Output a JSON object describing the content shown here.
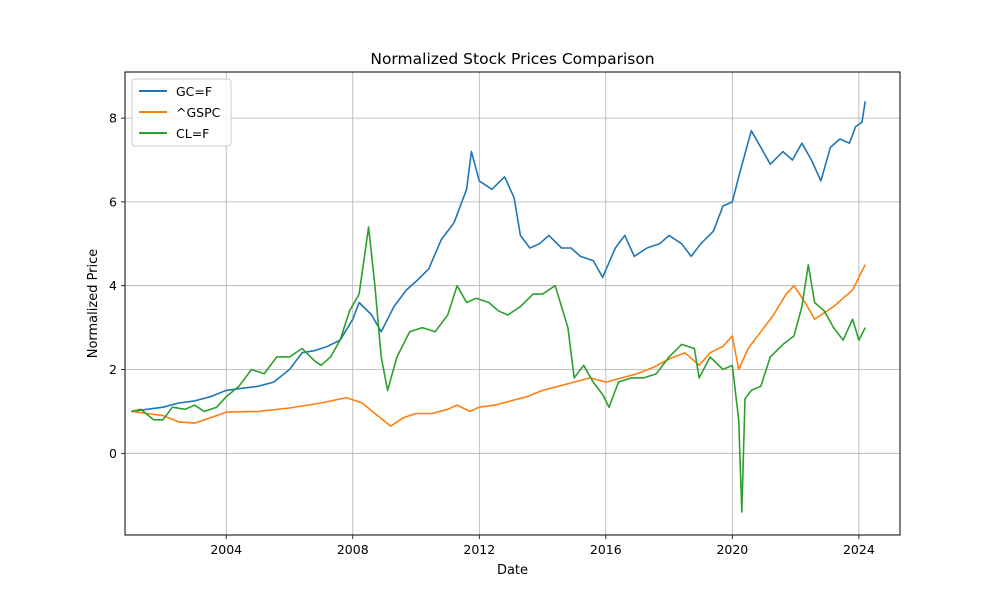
{
  "chart_data": {
    "type": "line",
    "title": "Normalized Stock Prices Comparison",
    "xlabel": "Date",
    "ylabel": "Normalized Price",
    "xlim": [
      2000.8,
      2025.3
    ],
    "ylim": [
      -1.95,
      9.1
    ],
    "x_ticks": [
      2004,
      2008,
      2012,
      2016,
      2020,
      2024
    ],
    "y_ticks": [
      0,
      2,
      4,
      6,
      8
    ],
    "grid": true,
    "legend_position": "top-left",
    "series": [
      {
        "name": "GC=F",
        "color": "#1f77b4",
        "x": [
          2001.0,
          2001.5,
          2002.0,
          2002.5,
          2003.0,
          2003.5,
          2004.0,
          2004.5,
          2005.0,
          2005.5,
          2006.0,
          2006.4,
          2006.8,
          2007.2,
          2007.6,
          2008.0,
          2008.2,
          2008.6,
          2008.9,
          2009.3,
          2009.7,
          2010.0,
          2010.4,
          2010.8,
          2011.2,
          2011.6,
          2011.75,
          2012.0,
          2012.4,
          2012.8,
          2013.1,
          2013.3,
          2013.6,
          2013.9,
          2014.2,
          2014.6,
          2014.9,
          2015.2,
          2015.6,
          2015.9,
          2016.3,
          2016.6,
          2016.9,
          2017.3,
          2017.7,
          2018.0,
          2018.4,
          2018.7,
          2019.0,
          2019.4,
          2019.7,
          2020.0,
          2020.2,
          2020.6,
          2020.9,
          2021.2,
          2021.6,
          2021.9,
          2022.2,
          2022.5,
          2022.8,
          2023.1,
          2023.4,
          2023.7,
          2023.9,
          2024.1,
          2024.2
        ],
        "y": [
          1.0,
          1.05,
          1.1,
          1.2,
          1.25,
          1.35,
          1.5,
          1.55,
          1.6,
          1.7,
          2.0,
          2.4,
          2.45,
          2.55,
          2.7,
          3.2,
          3.6,
          3.3,
          2.9,
          3.5,
          3.9,
          4.1,
          4.4,
          5.1,
          5.5,
          6.3,
          7.2,
          6.5,
          6.3,
          6.6,
          6.1,
          5.2,
          4.9,
          5.0,
          5.2,
          4.9,
          4.9,
          4.7,
          4.6,
          4.2,
          4.9,
          5.2,
          4.7,
          4.9,
          5.0,
          5.2,
          5.0,
          4.7,
          5.0,
          5.3,
          5.9,
          6.0,
          6.6,
          7.7,
          7.3,
          6.9,
          7.2,
          7.0,
          7.4,
          7.0,
          6.5,
          7.3,
          7.5,
          7.4,
          7.8,
          7.9,
          8.4
        ]
      },
      {
        "name": "^GSPC",
        "color": "#ff7f0e",
        "x": [
          2001.0,
          2001.5,
          2002.0,
          2002.5,
          2003.0,
          2003.5,
          2004.0,
          2005.0,
          2006.0,
          2007.0,
          2007.8,
          2008.3,
          2008.7,
          2009.2,
          2009.6,
          2010.0,
          2010.5,
          2011.0,
          2011.3,
          2011.7,
          2012.0,
          2012.5,
          2013.0,
          2013.5,
          2014.0,
          2014.5,
          2015.0,
          2015.5,
          2016.0,
          2016.5,
          2017.0,
          2017.5,
          2018.0,
          2018.5,
          2018.95,
          2019.3,
          2019.7,
          2020.0,
          2020.2,
          2020.5,
          2020.9,
          2021.3,
          2021.7,
          2021.95,
          2022.3,
          2022.6,
          2022.8,
          2023.2,
          2023.5,
          2023.8,
          2024.0,
          2024.2
        ],
        "y": [
          1.0,
          0.95,
          0.9,
          0.75,
          0.72,
          0.85,
          0.98,
          1.0,
          1.08,
          1.2,
          1.33,
          1.2,
          0.95,
          0.65,
          0.85,
          0.95,
          0.95,
          1.05,
          1.15,
          1.0,
          1.1,
          1.15,
          1.25,
          1.35,
          1.5,
          1.6,
          1.7,
          1.8,
          1.7,
          1.8,
          1.9,
          2.05,
          2.25,
          2.4,
          2.1,
          2.4,
          2.55,
          2.8,
          2.0,
          2.5,
          2.9,
          3.3,
          3.8,
          4.0,
          3.6,
          3.2,
          3.3,
          3.5,
          3.7,
          3.9,
          4.2,
          4.5
        ]
      },
      {
        "name": "CL=F",
        "color": "#2ca02c",
        "x": [
          2001.0,
          2001.3,
          2001.7,
          2002.0,
          2002.3,
          2002.7,
          2003.0,
          2003.3,
          2003.7,
          2004.0,
          2004.4,
          2004.8,
          2005.2,
          2005.6,
          2006.0,
          2006.4,
          2006.8,
          2007.0,
          2007.3,
          2007.6,
          2007.9,
          2008.2,
          2008.5,
          2008.7,
          2008.9,
          2009.1,
          2009.4,
          2009.8,
          2010.2,
          2010.6,
          2011.0,
          2011.3,
          2011.6,
          2011.9,
          2012.3,
          2012.6,
          2012.9,
          2013.3,
          2013.7,
          2014.0,
          2014.4,
          2014.8,
          2015.0,
          2015.3,
          2015.6,
          2015.9,
          2016.1,
          2016.4,
          2016.8,
          2017.2,
          2017.6,
          2018.0,
          2018.4,
          2018.8,
          2018.95,
          2019.3,
          2019.7,
          2020.0,
          2020.2,
          2020.3,
          2020.4,
          2020.6,
          2020.9,
          2021.2,
          2021.6,
          2021.95,
          2022.2,
          2022.4,
          2022.6,
          2022.9,
          2023.2,
          2023.5,
          2023.8,
          2024.0,
          2024.2
        ],
        "y": [
          1.0,
          1.05,
          0.8,
          0.8,
          1.1,
          1.05,
          1.15,
          1.0,
          1.1,
          1.35,
          1.6,
          2.0,
          1.9,
          2.3,
          2.3,
          2.5,
          2.2,
          2.1,
          2.3,
          2.7,
          3.4,
          3.8,
          5.4,
          4.0,
          2.3,
          1.5,
          2.3,
          2.9,
          3.0,
          2.9,
          3.3,
          4.0,
          3.6,
          3.7,
          3.6,
          3.4,
          3.3,
          3.5,
          3.8,
          3.8,
          4.0,
          3.0,
          1.8,
          2.1,
          1.7,
          1.4,
          1.1,
          1.7,
          1.8,
          1.8,
          1.9,
          2.3,
          2.6,
          2.5,
          1.8,
          2.3,
          2.0,
          2.1,
          0.8,
          -1.4,
          1.3,
          1.5,
          1.6,
          2.3,
          2.6,
          2.8,
          3.5,
          4.5,
          3.6,
          3.4,
          3.0,
          2.7,
          3.2,
          2.7,
          3.0
        ]
      }
    ]
  }
}
